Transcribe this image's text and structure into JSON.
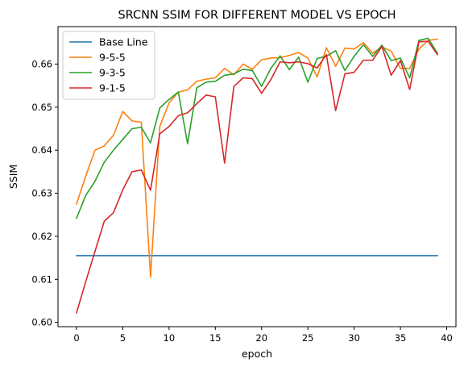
{
  "chart_data": {
    "type": "line",
    "title": "SRCNN SSIM FOR DIFFERENT MODEL VS EPOCH",
    "xlabel": "epoch",
    "ylabel": "SSIM",
    "xlim": [
      -2,
      41
    ],
    "ylim": [
      0.599,
      0.6687
    ],
    "xticks": [
      0,
      5,
      10,
      15,
      20,
      25,
      30,
      35,
      40
    ],
    "yticks": [
      0.6,
      0.61,
      0.62,
      0.63,
      0.64,
      0.65,
      0.66
    ],
    "ytick_labels": [
      "0.60",
      "0.61",
      "0.62",
      "0.63",
      "0.64",
      "0.65",
      "0.66"
    ],
    "grid": false,
    "legend_position": "top-left",
    "x": [
      0,
      1,
      2,
      3,
      4,
      5,
      6,
      7,
      8,
      9,
      10,
      11,
      12,
      13,
      14,
      15,
      16,
      17,
      18,
      19,
      20,
      21,
      22,
      23,
      24,
      25,
      26,
      27,
      28,
      29,
      30,
      31,
      32,
      33,
      34,
      35,
      36,
      37,
      38,
      39
    ],
    "series": [
      {
        "name": "Base Line",
        "color": "#1f77b4",
        "values": [
          0.6155,
          0.6155,
          0.6155,
          0.6155,
          0.6155,
          0.6155,
          0.6155,
          0.6155,
          0.6155,
          0.6155,
          0.6155,
          0.6155,
          0.6155,
          0.6155,
          0.6155,
          0.6155,
          0.6155,
          0.6155,
          0.6155,
          0.6155,
          0.6155,
          0.6155,
          0.6155,
          0.6155,
          0.6155,
          0.6155,
          0.6155,
          0.6155,
          0.6155,
          0.6155,
          0.6155,
          0.6155,
          0.6155,
          0.6155,
          0.6155,
          0.6155,
          0.6155,
          0.6155,
          0.6155,
          0.6155
        ]
      },
      {
        "name": "9-5-5",
        "color": "#ff7f0e",
        "values": [
          0.6275,
          0.634,
          0.64,
          0.641,
          0.6435,
          0.649,
          0.6468,
          0.6465,
          0.6105,
          0.6455,
          0.651,
          0.6535,
          0.654,
          0.656,
          0.6565,
          0.6568,
          0.659,
          0.6575,
          0.66,
          0.6588,
          0.661,
          0.6614,
          0.6615,
          0.662,
          0.6627,
          0.6614,
          0.657,
          0.6638,
          0.6595,
          0.6637,
          0.6635,
          0.665,
          0.6625,
          0.664,
          0.663,
          0.659,
          0.659,
          0.6635,
          0.6655,
          0.6658
        ]
      },
      {
        "name": "9-3-5",
        "color": "#2ca02c",
        "values": [
          0.6242,
          0.6295,
          0.6328,
          0.6372,
          0.64,
          0.6425,
          0.645,
          0.6453,
          0.6417,
          0.6498,
          0.6518,
          0.6535,
          0.6415,
          0.6545,
          0.6558,
          0.656,
          0.6574,
          0.6577,
          0.6588,
          0.6585,
          0.6548,
          0.659,
          0.6619,
          0.6587,
          0.6616,
          0.6558,
          0.6613,
          0.6618,
          0.6631,
          0.6585,
          0.6618,
          0.6645,
          0.6618,
          0.6644,
          0.6608,
          0.6614,
          0.6568,
          0.6655,
          0.666,
          0.6625
        ]
      },
      {
        "name": "9-1-5",
        "color": "#d62728",
        "values": [
          0.6022,
          0.6095,
          0.6165,
          0.6235,
          0.6255,
          0.6308,
          0.635,
          0.6354,
          0.6307,
          0.6438,
          0.6455,
          0.648,
          0.6487,
          0.6508,
          0.6528,
          0.6524,
          0.637,
          0.6548,
          0.6568,
          0.6566,
          0.6532,
          0.6564,
          0.6605,
          0.6603,
          0.6605,
          0.6601,
          0.6591,
          0.6622,
          0.6492,
          0.6577,
          0.6581,
          0.6609,
          0.6609,
          0.6641,
          0.6574,
          0.6608,
          0.6541,
          0.6652,
          0.6653,
          0.6622
        ]
      }
    ]
  }
}
